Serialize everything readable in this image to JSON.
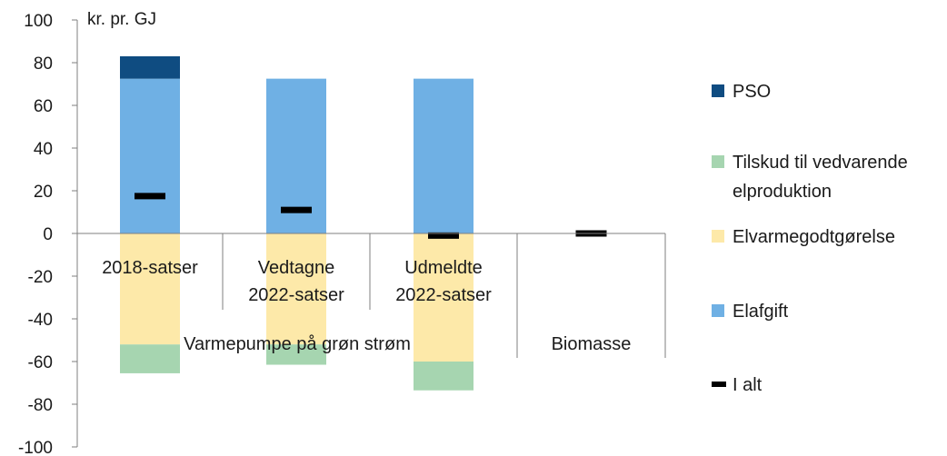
{
  "chart_data": {
    "type": "bar",
    "stacked": true,
    "unit_label": "kr. pr. GJ",
    "ylim": [
      -100,
      100
    ],
    "yticks": [
      100,
      80,
      60,
      40,
      20,
      0,
      -20,
      -40,
      -60,
      -80,
      -100
    ],
    "categories": [
      "2018-satser",
      "Vedtagne 2022-satser",
      "Udmeldte 2022-satser",
      "Biomasse"
    ],
    "category_lines": [
      [
        "2018-satser"
      ],
      [
        "Vedtagne",
        "2022-satser"
      ],
      [
        "Udmeldte",
        "2022-satser"
      ],
      [
        ""
      ]
    ],
    "groups": [
      {
        "label": "Varmepumpe på grøn strøm",
        "categories": [
          0,
          1,
          2
        ]
      },
      {
        "label": "Biomasse",
        "categories": [
          3
        ]
      }
    ],
    "series": [
      {
        "name": "PSO",
        "color": "#0f4c81",
        "values": [
          10.5,
          0,
          0,
          0
        ]
      },
      {
        "name": "Tilskud til vedvarende elproduktion",
        "color": "#a6d5b0",
        "values": [
          -13.5,
          -9.5,
          -13.5,
          0
        ]
      },
      {
        "name": "Elvarmegodtgørelse",
        "color": "#fde9a9",
        "values": [
          -52,
          -52,
          -60,
          0
        ]
      },
      {
        "name": "Elafgift",
        "color": "#6fb0e4",
        "values": [
          72.5,
          72.5,
          72.5,
          0
        ]
      }
    ],
    "total": {
      "name": "I alt",
      "color": "#000000",
      "values": [
        17.5,
        11,
        -1,
        0
      ]
    },
    "legend_position": "right",
    "legend_order": [
      "PSO",
      "Tilskud til vedvarende elproduktion",
      "Elvarmegodtgørelse",
      "Elafgift",
      "I alt"
    ],
    "legend_lines": {
      "Tilskud til vedvarende elproduktion": [
        "Tilskud til vedvarende",
        "elproduktion"
      ]
    },
    "grid": false
  }
}
